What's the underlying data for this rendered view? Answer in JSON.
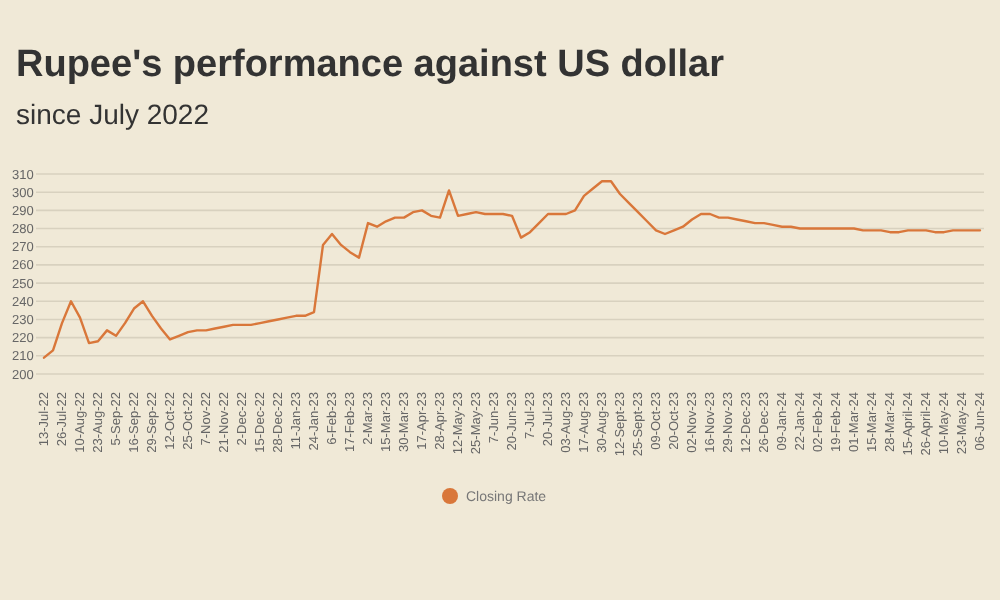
{
  "chart_data": {
    "type": "line",
    "title": "Rupee's performance against US dollar",
    "subtitle": "since July 2022",
    "categories": [
      "13-Jul-22",
      null,
      "26-Jul-22",
      null,
      "10-Aug-22",
      null,
      "23-Aug-22",
      null,
      "5-Sep-22",
      null,
      "16-Sep-22",
      null,
      "29-Sep-22",
      null,
      "12-Oct-22",
      null,
      "25-Oct-22",
      null,
      "7-Nov-22",
      null,
      "21-Nov-22",
      null,
      "2-Dec-22",
      null,
      "15-Dec-22",
      null,
      "28-Dec-22",
      null,
      "11-Jan-23",
      null,
      "24-Jan-23",
      null,
      "6-Feb-23",
      null,
      "17-Feb-23",
      null,
      "2-Mar-23",
      null,
      "15-Mar-23",
      null,
      "30-Mar-23",
      null,
      "17-Apr-23",
      null,
      "28-Apr-23",
      null,
      "12-May-23",
      null,
      "25-May-23",
      null,
      "7-Jun-23",
      null,
      "20-Jun-23",
      null,
      "7-Jul-23",
      null,
      "20-Jul-23",
      null,
      "03-Aug-23",
      null,
      "17-Aug-23",
      null,
      "30-Aug-23",
      null,
      "12-Sept-23",
      null,
      "25-Sept-23",
      null,
      "09-Oct-23",
      null,
      "20-Oct-23",
      null,
      "02-Nov-23",
      null,
      "16-Nov-23",
      null,
      "29-Nov-23",
      null,
      "12-Dec-23",
      null,
      "26-Dec-23",
      null,
      "09-Jan-24",
      null,
      "22-Jan-24",
      null,
      "02-Feb-24",
      null,
      "19-Feb-24",
      null,
      "01-Mar-24",
      null,
      "15-Mar-24",
      null,
      "28-Mar-24",
      null,
      "15-April-24",
      null,
      "26-April-24",
      null,
      "10-May-24",
      null,
      "23-May-24",
      null,
      "06-Jun-24"
    ],
    "series": [
      {
        "name": "Closing Rate",
        "color": "#d9773a",
        "values": [
          209,
          213,
          228,
          240,
          231,
          217,
          218,
          224,
          221,
          228,
          236,
          240,
          232,
          225,
          219,
          221,
          223,
          224,
          224,
          225,
          226,
          227,
          227,
          227,
          228,
          229,
          230,
          231,
          232,
          232,
          234,
          271,
          277,
          271,
          267,
          264,
          283,
          281,
          284,
          286,
          286,
          289,
          290,
          287,
          286,
          301,
          287,
          288,
          289,
          288,
          288,
          288,
          287,
          275,
          278,
          283,
          288,
          288,
          288,
          290,
          298,
          302,
          306,
          306,
          299,
          294,
          289,
          284,
          279,
          277,
          279,
          281,
          285,
          288,
          288,
          286,
          286,
          285,
          284,
          283,
          283,
          282,
          281,
          281,
          280,
          280,
          280,
          280,
          280,
          280,
          280,
          279,
          279,
          279,
          278,
          278,
          279,
          279,
          279,
          278,
          278,
          279,
          279,
          279,
          279
        ]
      }
    ],
    "ylim": [
      200,
      310
    ],
    "yticks": [
      200,
      210,
      220,
      230,
      240,
      250,
      260,
      270,
      280,
      290,
      300,
      310
    ],
    "grid": "y",
    "legend": "bottom",
    "marker": "none",
    "line_style": "solid"
  }
}
